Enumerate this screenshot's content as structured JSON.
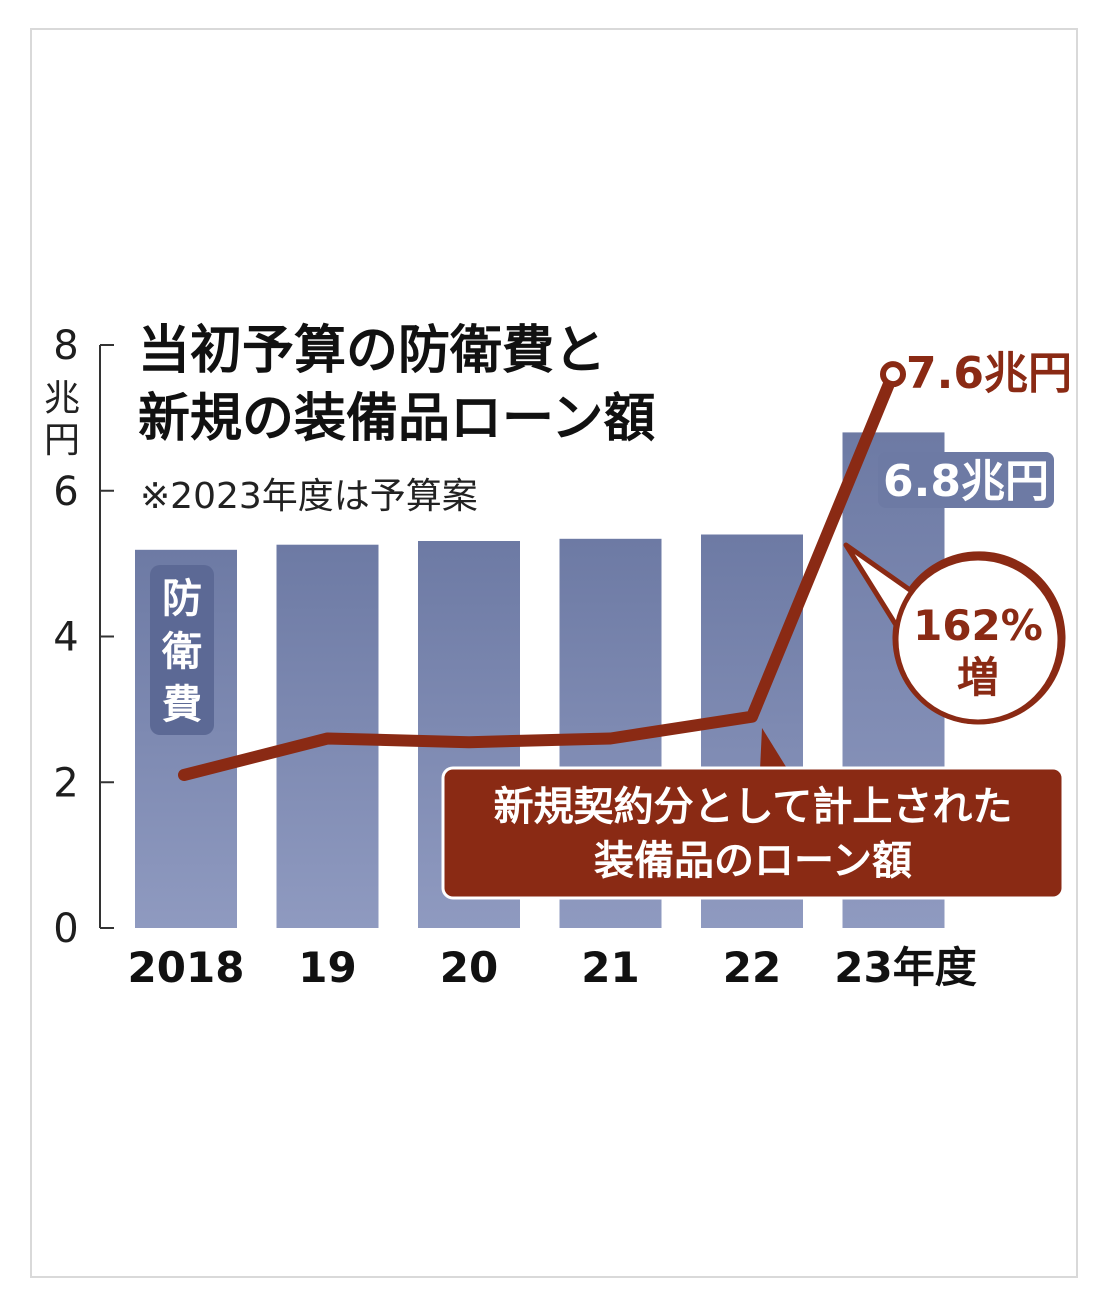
{
  "chart_data": {
    "type": "bar",
    "title_lines": [
      "当初予算の防衛費と",
      "新規の装備品ローン額"
    ],
    "subtitle": "※2023年度は予算案",
    "y_unit_chars": [
      "兆",
      "円"
    ],
    "ylim": [
      0,
      8
    ],
    "y_ticks": [
      "0",
      "2",
      "4",
      "6",
      "8"
    ],
    "categories": [
      "2018",
      "19",
      "20",
      "21",
      "22",
      "23年度"
    ],
    "series": [
      {
        "name": "防衛費",
        "type": "bar",
        "values": [
          5.19,
          5.26,
          5.31,
          5.34,
          5.4,
          6.8
        ]
      },
      {
        "name": "新規契約分として計上された装備品のローン額",
        "type": "line",
        "values": [
          2.1,
          2.6,
          2.55,
          2.6,
          2.9,
          7.6
        ]
      }
    ],
    "bar_label_chars": [
      "防",
      "衛",
      "費"
    ],
    "annotations": {
      "bar_last": "6.8兆円",
      "line_last": "7.6兆円",
      "increase_line1": "162%",
      "increase_line2": "増",
      "line_callout_line1": "新規契約分として計上された",
      "line_callout_line2": "装備品のローン額"
    },
    "grid": false,
    "colors": {
      "bar": "#6d7aa4",
      "bar_light": "#8f9ac0",
      "line": "#8a2a14"
    }
  }
}
